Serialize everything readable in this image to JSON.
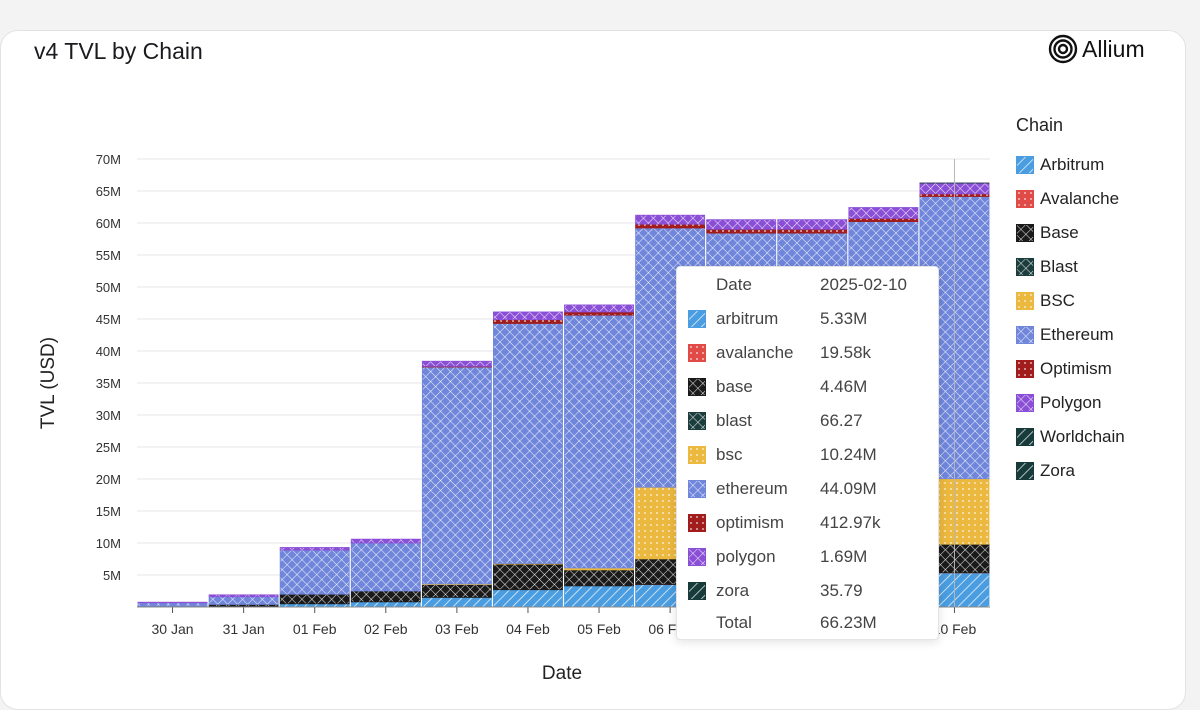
{
  "page": {
    "title": "v4 TVL by Chain",
    "brand": "Allium"
  },
  "chart_data": {
    "type": "bar",
    "stacked": true,
    "title": "v4 TVL by Chain",
    "xlabel": "Date",
    "ylabel": "TVL (USD)",
    "ylim": [
      0,
      70000000
    ],
    "yticks": [
      "5M",
      "10M",
      "15M",
      "20M",
      "25M",
      "30M",
      "35M",
      "40M",
      "45M",
      "50M",
      "55M",
      "60M",
      "65M",
      "70M"
    ],
    "grid": true,
    "legend_position": "right",
    "legend_title": "Chain",
    "categories": [
      "30 Jan",
      "31 Jan",
      "01 Feb",
      "02 Feb",
      "03 Feb",
      "04 Feb",
      "05 Feb",
      "06 Feb",
      "07 Feb",
      "08 Feb",
      "09 Feb",
      "10 Feb"
    ],
    "series": [
      {
        "name": "Arbitrum",
        "color": "#4a9de0",
        "pattern": "diagonal",
        "values": [
          0.05,
          0.1,
          0.5,
          0.8,
          1.5,
          2.7,
          3.3,
          3.5,
          3.5,
          3.5,
          3.5,
          5.33
        ]
      },
      {
        "name": "Avalanche",
        "color": "#e14b47",
        "pattern": "dots",
        "values": [
          0.0,
          0.0,
          0.0,
          0.0,
          0.0,
          0.0,
          0.0,
          0.02,
          0.02,
          0.02,
          0.02,
          0.02
        ]
      },
      {
        "name": "Base",
        "color": "#1a1a1a",
        "pattern": "crosshatch",
        "values": [
          0.1,
          0.3,
          1.5,
          1.7,
          2.0,
          4.0,
          2.5,
          4.0,
          4.3,
          4.3,
          4.4,
          4.46
        ]
      },
      {
        "name": "Blast",
        "color": "#1c3d3d",
        "pattern": "crosshatch",
        "values": [
          0,
          0,
          0,
          0,
          0,
          0,
          0,
          0,
          0,
          0,
          0,
          6.627e-05
        ]
      },
      {
        "name": "BSC",
        "color": "#ebb93f",
        "pattern": "dots",
        "values": [
          0.0,
          0.0,
          0.0,
          0.0,
          0.1,
          0.1,
          0.3,
          11.2,
          10.0,
          10.0,
          10.0,
          10.24
        ]
      },
      {
        "name": "Ethereum",
        "color": "#6f86db",
        "pattern": "crosshatch",
        "values": [
          0.5,
          1.2,
          6.9,
          7.5,
          33.9,
          37.5,
          39.5,
          40.5,
          40.6,
          40.6,
          42.3,
          44.09
        ]
      },
      {
        "name": "Optimism",
        "color": "#a11d1d",
        "pattern": "dots",
        "values": [
          0.0,
          0.0,
          0.0,
          0.0,
          0.1,
          0.6,
          0.5,
          0.6,
          0.6,
          0.6,
          0.5,
          0.41297
        ]
      },
      {
        "name": "Polygon",
        "color": "#8a4fd6",
        "pattern": "crosshatch",
        "values": [
          0.1,
          0.3,
          0.4,
          0.6,
          0.8,
          1.2,
          1.1,
          1.4,
          1.5,
          1.5,
          1.7,
          1.69
        ]
      },
      {
        "name": "Worldchain",
        "color": "#173a3a",
        "pattern": "diagonal",
        "values": [
          0,
          0,
          0,
          0,
          0,
          0,
          0,
          0,
          0,
          0,
          0,
          0
        ]
      },
      {
        "name": "Zora",
        "color": "#173a3a",
        "pattern": "diagonal",
        "values": [
          0,
          0,
          0,
          0,
          0,
          0,
          0,
          0,
          0,
          0,
          0,
          3.579e-05
        ]
      }
    ],
    "value_unit": "millions USD",
    "tooltip": {
      "header_label": "Date",
      "header_value": "2025-02-10",
      "rows": [
        {
          "name": "arbitrum",
          "value": "5.33M",
          "color": "#4a9de0",
          "pattern": "diagonal"
        },
        {
          "name": "avalanche",
          "value": "19.58k",
          "color": "#e14b47",
          "pattern": "dots"
        },
        {
          "name": "base",
          "value": "4.46M",
          "color": "#1a1a1a",
          "pattern": "crosshatch"
        },
        {
          "name": "blast",
          "value": "66.27",
          "color": "#1c3d3d",
          "pattern": "crosshatch"
        },
        {
          "name": "bsc",
          "value": "10.24M",
          "color": "#ebb93f",
          "pattern": "dots"
        },
        {
          "name": "ethereum",
          "value": "44.09M",
          "color": "#6f86db",
          "pattern": "crosshatch"
        },
        {
          "name": "optimism",
          "value": "412.97k",
          "color": "#a11d1d",
          "pattern": "dots"
        },
        {
          "name": "polygon",
          "value": "1.69M",
          "color": "#8a4fd6",
          "pattern": "crosshatch"
        },
        {
          "name": "zora",
          "value": "35.79",
          "color": "#173a3a",
          "pattern": "diagonal"
        }
      ],
      "total_label": "Total",
      "total_value": "66.23M"
    }
  }
}
